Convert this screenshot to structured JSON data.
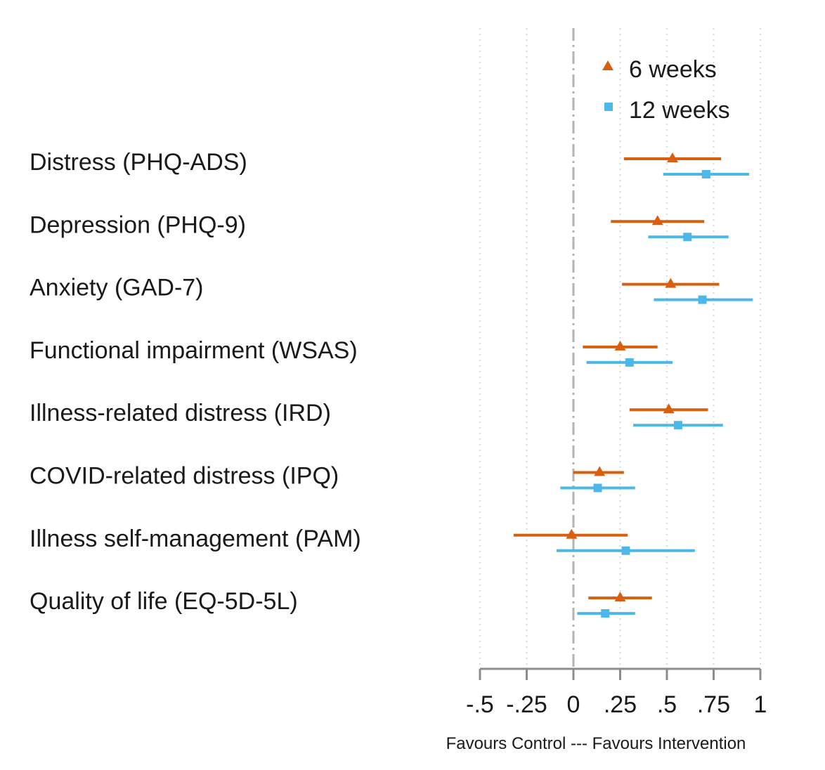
{
  "chart_data": {
    "type": "forest",
    "xlabel": "Favours Control --- Favours Intervention",
    "xlim": [
      -0.5,
      1
    ],
    "ticks": [
      -0.5,
      -0.25,
      0,
      0.25,
      0.5,
      0.75,
      1
    ],
    "tick_labels": [
      "-.5",
      "-.25",
      "0",
      ".25",
      ".5",
      ".75",
      "1"
    ],
    "reference_line": 0,
    "grid": "vertical dotted",
    "legend_position": "top-right",
    "outcomes": [
      "Distress (PHQ-ADS)",
      "Depression (PHQ-9)",
      "Anxiety (GAD-7)",
      "Functional impairment (WSAS)",
      "Illness-related distress (IRD)",
      "COVID-related distress (IPQ)",
      "Illness self-management (PAM)",
      "Quality of life (EQ-5D-5L)"
    ],
    "series": [
      {
        "name": "6 weeks",
        "marker": "triangle",
        "color": "#d95f0e",
        "estimates": [
          0.53,
          0.45,
          0.52,
          0.25,
          0.51,
          0.14,
          -0.01,
          0.25
        ],
        "lower": [
          0.27,
          0.2,
          0.26,
          0.05,
          0.3,
          0.0,
          -0.32,
          0.08
        ],
        "upper": [
          0.79,
          0.7,
          0.78,
          0.45,
          0.72,
          0.27,
          0.29,
          0.42
        ]
      },
      {
        "name": "12 weeks",
        "marker": "square",
        "color": "#4db8e8",
        "estimates": [
          0.71,
          0.61,
          0.69,
          0.3,
          0.56,
          0.13,
          0.28,
          0.17
        ],
        "lower": [
          0.48,
          0.4,
          0.43,
          0.07,
          0.32,
          -0.07,
          -0.09,
          0.02
        ],
        "upper": [
          0.94,
          0.83,
          0.96,
          0.53,
          0.8,
          0.33,
          0.65,
          0.33
        ]
      }
    ]
  }
}
